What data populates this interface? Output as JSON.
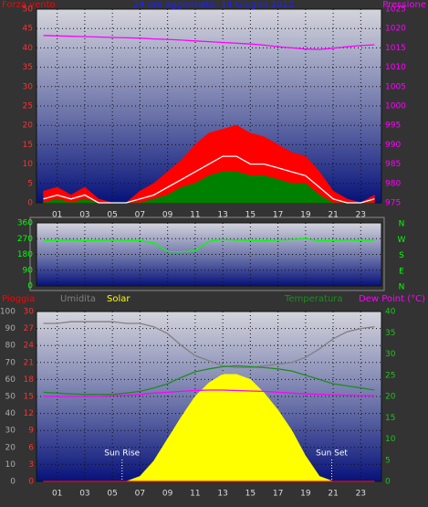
{
  "chart_data": [
    {
      "type": "line",
      "title": "24 ore aggiornato: 14 Giugno 2012",
      "ylabel": "Forza vento",
      "y2label": "Pressione",
      "x": [
        0,
        1,
        2,
        3,
        4,
        5,
        6,
        7,
        8,
        9,
        10,
        11,
        12,
        13,
        14,
        15,
        16,
        17,
        18,
        19,
        20,
        21,
        22,
        23,
        24
      ],
      "xlim": [
        -0.5,
        24.5
      ],
      "xticks": [
        {
          "value": 1,
          "label": "01"
        },
        {
          "value": 3,
          "label": "03"
        },
        {
          "value": 5,
          "label": "05"
        },
        {
          "value": 7,
          "label": "07"
        },
        {
          "value": 9,
          "label": "09"
        },
        {
          "value": 11,
          "label": "11"
        },
        {
          "value": 13,
          "label": "13"
        },
        {
          "value": 15,
          "label": "15"
        },
        {
          "value": 17,
          "label": "17"
        },
        {
          "value": 19,
          "label": "19"
        },
        {
          "value": 21,
          "label": "21"
        },
        {
          "value": 23,
          "label": "23"
        }
      ],
      "ylim": [
        0,
        50
      ],
      "yticks": [
        0,
        5,
        10,
        15,
        20,
        25,
        30,
        35,
        40,
        45,
        50
      ],
      "y2lim": [
        975,
        1025
      ],
      "y2ticks": [
        975,
        980,
        985,
        990,
        995,
        1000,
        1005,
        1010,
        1015,
        1020,
        1025
      ],
      "grid": true,
      "series": [
        {
          "color": "#ff0000",
          "style": "area",
          "values": [
            3,
            4,
            2,
            4,
            1,
            0,
            0,
            3,
            5,
            8,
            11,
            15,
            18,
            19,
            20,
            18,
            17,
            15,
            13,
            12,
            8,
            3,
            1,
            0,
            2
          ]
        },
        {
          "color": "#ffffff",
          "style": "line",
          "values": [
            1,
            2,
            1,
            2,
            0,
            0,
            0,
            1,
            2,
            4,
            6,
            8,
            10,
            12,
            12,
            10,
            10,
            9,
            8,
            7,
            4,
            1,
            0,
            0,
            1
          ]
        },
        {
          "color": "#008000",
          "style": "area",
          "values": [
            0,
            1,
            0,
            1,
            0,
            0,
            0,
            0,
            1,
            2,
            4,
            5,
            7,
            8,
            8,
            7,
            7,
            6,
            5,
            5,
            2,
            0,
            0,
            0,
            0
          ]
        },
        {
          "color": "#ff00ff",
          "style": "line",
          "axis": "y2",
          "values": [
            1018.2,
            1018.1,
            1018,
            1017.9,
            1017.8,
            1017.7,
            1017.6,
            1017.5,
            1017.3,
            1017.2,
            1017,
            1016.8,
            1016.6,
            1016.4,
            1016.2,
            1016,
            1015.7,
            1015.3,
            1015,
            1014.7,
            1014.6,
            1014.9,
            1015.3,
            1015.6,
            1015.8
          ]
        }
      ]
    },
    {
      "type": "line",
      "x": [
        0,
        1,
        2,
        3,
        4,
        5,
        6,
        7,
        8,
        9,
        10,
        11,
        12,
        13,
        14,
        15,
        16,
        17,
        18,
        19,
        20,
        21,
        22,
        23,
        24
      ],
      "xlim": [
        -0.5,
        24.5
      ],
      "ylim": [
        0,
        360
      ],
      "yticks": [
        0,
        90,
        180,
        270,
        360
      ],
      "compass": [
        "N",
        "W",
        "S",
        "E",
        "N"
      ],
      "grid": true,
      "series": [
        {
          "color": "#00ff00",
          "style": "line",
          "values": [
            260,
            260,
            262,
            258,
            260,
            262,
            260,
            260,
            245,
            195,
            195,
            200,
            255,
            265,
            262,
            260,
            258,
            262,
            265,
            270,
            258,
            260,
            262,
            260,
            262
          ]
        }
      ]
    },
    {
      "type": "line",
      "x": [
        0,
        1,
        2,
        3,
        4,
        5,
        6,
        7,
        8,
        9,
        10,
        11,
        12,
        13,
        14,
        15,
        16,
        17,
        18,
        19,
        20,
        21,
        22,
        23,
        24
      ],
      "xlim": [
        -0.5,
        24.5
      ],
      "xticks": [
        {
          "value": 1,
          "label": "01"
        },
        {
          "value": 3,
          "label": "03"
        },
        {
          "value": 5,
          "label": "05"
        },
        {
          "value": 7,
          "label": "07"
        },
        {
          "value": 9,
          "label": "09"
        },
        {
          "value": 11,
          "label": "11"
        },
        {
          "value": 13,
          "label": "13"
        },
        {
          "value": 15,
          "label": "15"
        },
        {
          "value": 17,
          "label": "17"
        },
        {
          "value": 19,
          "label": "19"
        },
        {
          "value": 21,
          "label": "21"
        },
        {
          "value": 23,
          "label": "23"
        }
      ],
      "ylim": [
        0,
        100
      ],
      "yticks": [
        0,
        10,
        20,
        30,
        40,
        50,
        60,
        70,
        80,
        90,
        100
      ],
      "rain_ylim": [
        0,
        30
      ],
      "rain_yticks": [
        0,
        3,
        6,
        9,
        12,
        15,
        18,
        21,
        24,
        27,
        30
      ],
      "y2lim": [
        0,
        40
      ],
      "y2ticks": [
        0,
        5,
        10,
        15,
        20,
        25,
        30,
        35,
        40
      ],
      "grid": true,
      "annotations": [
        {
          "text": "Sun Rise",
          "x": 5.7
        },
        {
          "text": "Sun Set",
          "x": 20.9
        }
      ],
      "series": [
        {
          "name": "Pioggia",
          "color": "#ff0000",
          "style": "line",
          "axis": "rain",
          "values": [
            0,
            0,
            0,
            0,
            0,
            0,
            0,
            0,
            0,
            0,
            0,
            0,
            0,
            0,
            0,
            0,
            0,
            0,
            0,
            0,
            0,
            0,
            0,
            0,
            0
          ]
        },
        {
          "name": "Umidita",
          "color": "#808080",
          "style": "line",
          "values": [
            93,
            93,
            94,
            94,
            94,
            94,
            93,
            93,
            91,
            87,
            80,
            74,
            71,
            68,
            67,
            67,
            68,
            69,
            70,
            73,
            78,
            84,
            88,
            90,
            91
          ]
        },
        {
          "name": "Solar",
          "color": "#ffff00",
          "style": "area",
          "values": [
            0,
            0,
            0,
            0,
            0,
            0,
            0,
            3,
            12,
            25,
            38,
            50,
            58,
            63,
            63,
            60,
            52,
            42,
            30,
            15,
            3,
            0,
            0,
            0,
            0
          ]
        },
        {
          "name": "Temperatura",
          "color": "#1e8c1e",
          "style": "line",
          "axis": "y2",
          "values": [
            21,
            20.8,
            20.6,
            20.5,
            20.5,
            20.5,
            20.8,
            21.2,
            22,
            23,
            24.5,
            25.8,
            26.5,
            27,
            27.2,
            27,
            26.8,
            26.5,
            26,
            25,
            24,
            23,
            22.5,
            22,
            21.5
          ]
        },
        {
          "name": "Dew Point (°C)",
          "color": "#ff00ff",
          "style": "line",
          "axis": "y2",
          "values": [
            20,
            20,
            20,
            20,
            20,
            20.2,
            20.3,
            20.5,
            20.8,
            21,
            21.2,
            21.4,
            21.5,
            21.5,
            21.4,
            21.3,
            21.2,
            21,
            20.8,
            20.6,
            20.5,
            20.4,
            20.3,
            20.2,
            20.2
          ]
        }
      ]
    }
  ]
}
